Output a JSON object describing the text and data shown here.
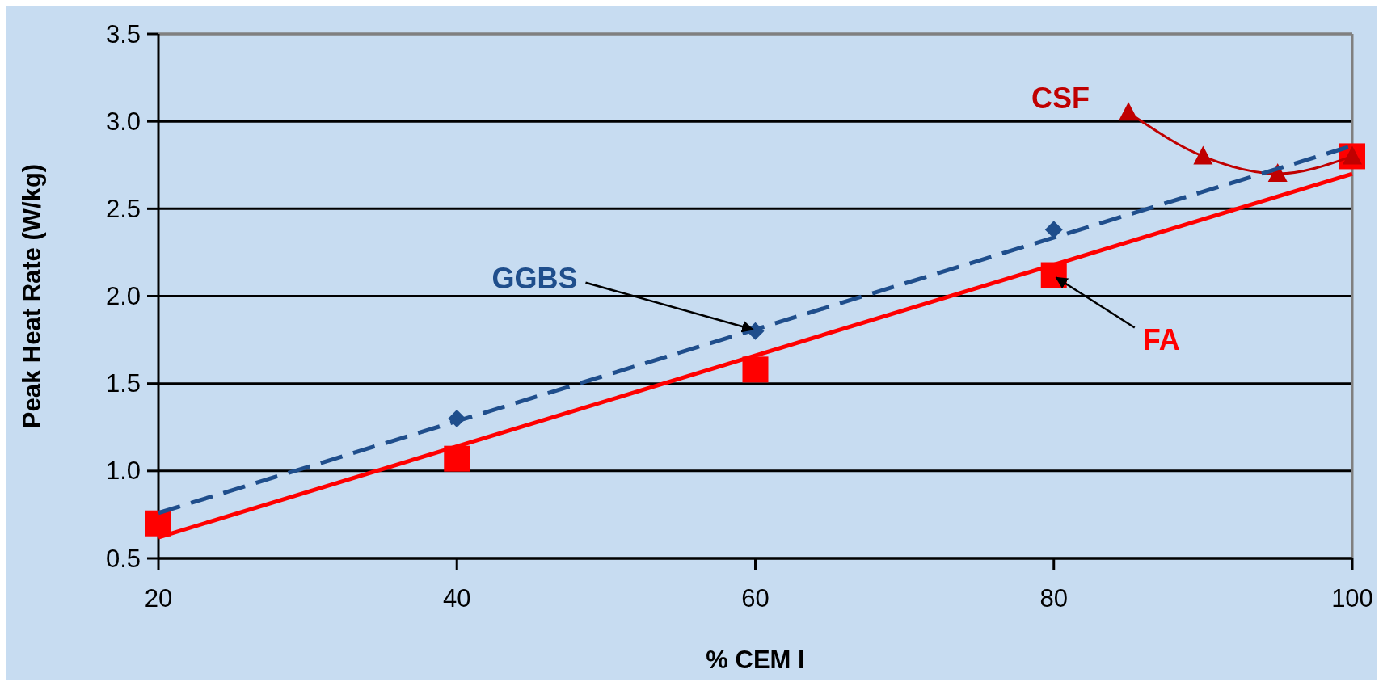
{
  "chart_data": {
    "type": "scatter",
    "xlabel": "% CEM I",
    "ylabel": "Peak Heat Rate (W/kg)",
    "xlim": [
      20,
      100
    ],
    "ylim": [
      0.5,
      3.5
    ],
    "xticks": [
      20,
      40,
      60,
      80,
      100
    ],
    "yticks": [
      0.5,
      {
        "value": 1,
        "label": "1.0"
      },
      1.5,
      {
        "value": 2,
        "label": "2.0"
      },
      2.5,
      {
        "value": 3,
        "label": "3.0"
      },
      3.5
    ],
    "grid": "y",
    "series": [
      {
        "type": "line",
        "x": [
          20,
          100
        ],
        "values": [
          0.76,
          2.86
        ],
        "color": "#1f4e8c",
        "line_style": "dashed",
        "marker": "none"
      },
      {
        "type": "line",
        "x": [
          20,
          100
        ],
        "values": [
          0.62,
          2.7
        ],
        "color": "#ff0000",
        "line_style": "solid",
        "marker": "none"
      },
      {
        "x": [
          40,
          60,
          80
        ],
        "values": [
          1.3,
          1.8,
          2.38
        ],
        "color": "#1f4e8c",
        "marker": "diamond"
      },
      {
        "x": [
          20,
          40,
          60,
          80,
          100
        ],
        "values": [
          0.7,
          1.07,
          1.58,
          2.12,
          2.8
        ],
        "color": "#ff0000",
        "marker": "square"
      },
      {
        "type": "line",
        "x": [
          85,
          90,
          95,
          100
        ],
        "values": [
          3.05,
          2.8,
          2.7,
          2.8
        ],
        "color": "#c00000",
        "line_style": "solid",
        "marker": "triangle"
      }
    ],
    "annotations": [
      {
        "text": "GGBS",
        "x": 60,
        "y": 1.8
      },
      {
        "text": "FA",
        "x": 80,
        "y": 2.12
      },
      {
        "text": "CSF",
        "x": 85,
        "y": 3.05
      }
    ]
  }
}
